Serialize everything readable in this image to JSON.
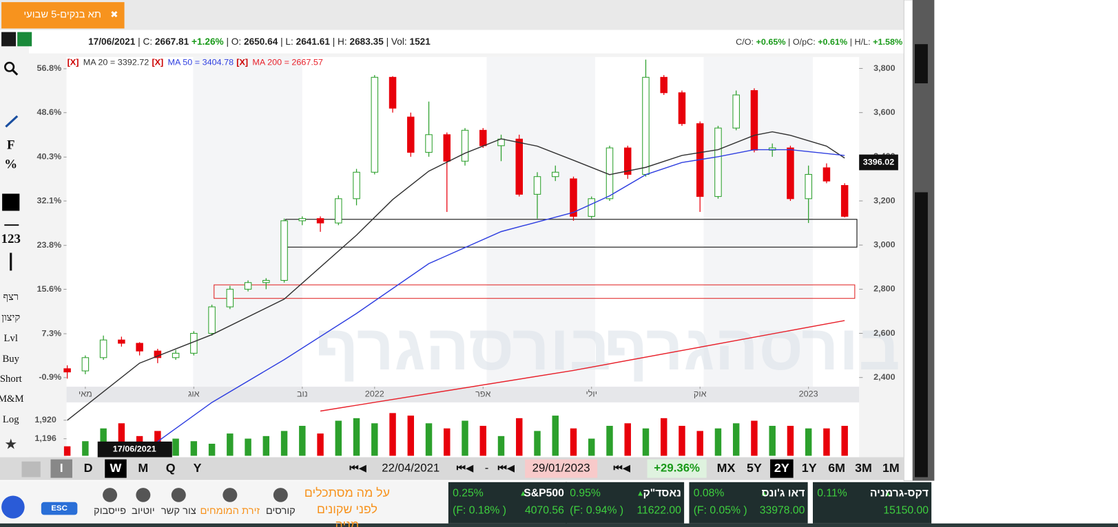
{
  "tab": {
    "title": "תא בנקים-5 שבועי",
    "close": "✖"
  },
  "info": {
    "date": "17/06/2021",
    "c_label": "| C:",
    "c": "2667.81",
    "c_change": "+1.26%",
    "o_label": "| O:",
    "o": "2650.64",
    "l_label": "| L:",
    "l": "2641.61",
    "h_label": "| H:",
    "h": "2683.35",
    "vol_label": "| Vol:",
    "vol": "1521",
    "co_label": "C/O:",
    "co": "+0.65%",
    "opc_label": "| O/pC:",
    "opc": "+0.61%",
    "hl_label": "| H/L:",
    "hl": "+1.58%"
  },
  "toolbar_left": [
    "F",
    "%",
    "123",
    "רצף",
    "קיצון",
    "Lvl",
    "Buy",
    "Short",
    "M&M",
    "Log"
  ],
  "chart_data": {
    "type": "candlestick",
    "watermark": "בורסהגרף",
    "ma_legend": [
      {
        "x": "[X]",
        "text": "MA 20 = 3392.72"
      },
      {
        "x": "[X]",
        "text": "MA 50 = 3404.78"
      },
      {
        "x": "[X]",
        "text": "MA 200 = 2667.57"
      }
    ],
    "price_tag": "3396.02",
    "cursor_date": "17/06/2021",
    "open": [
      2440,
      2430,
      2490,
      2570,
      2555,
      2520,
      2490,
      2510,
      2600,
      2720,
      2800,
      2830,
      2840,
      3110,
      3120,
      3100,
      3210,
      3330,
      3760,
      3580,
      3420,
      3500,
      3380,
      3520,
      3450,
      3480,
      3230,
      3310,
      3300,
      3130,
      3210,
      3440,
      3320,
      3760,
      3690,
      3550,
      3220,
      3530,
      3700,
      3430,
      3440,
      3210,
      3350,
      3270
    ],
    "high": [
      2455,
      2500,
      2590,
      2585,
      2560,
      2530,
      2525,
      2610,
      2730,
      2815,
      2840,
      2850,
      3120,
      3130,
      3130,
      3225,
      3345,
      3770,
      3765,
      3600,
      3650,
      3510,
      3530,
      3530,
      3500,
      3500,
      3330,
      3360,
      3310,
      3220,
      3450,
      3450,
      3840,
      3770,
      3700,
      3560,
      3540,
      3700,
      3710,
      3460,
      3450,
      3360,
      3370,
      3280
    ],
    "low": [
      2395,
      2415,
      2480,
      2540,
      2500,
      2465,
      2480,
      2500,
      2590,
      2710,
      2790,
      2800,
      2830,
      3090,
      3060,
      3090,
      3180,
      3320,
      3600,
      3400,
      3400,
      3150,
      3360,
      3440,
      3380,
      3220,
      3120,
      3290,
      3110,
      3120,
      3200,
      3300,
      3310,
      3680,
      3540,
      3150,
      3210,
      3520,
      3420,
      3400,
      3200,
      3100,
      3280,
      3125
    ],
    "close": [
      2425,
      2490,
      2570,
      2555,
      2520,
      2490,
      2510,
      2600,
      2720,
      2800,
      2830,
      2840,
      3110,
      3120,
      3100,
      3210,
      3330,
      3760,
      3620,
      3420,
      3500,
      3380,
      3520,
      3450,
      3480,
      3230,
      3310,
      3330,
      3130,
      3210,
      3440,
      3320,
      3760,
      3690,
      3550,
      3220,
      3530,
      3680,
      3430,
      3440,
      3210,
      3320,
      3290,
      3130
    ],
    "up_color": "#2ca02c",
    "down_color": "#e8000b",
    "ma": [
      {
        "name": "MA 20",
        "color": "#333333",
        "x": [
          0,
          4,
          8,
          12,
          16,
          18,
          20,
          22,
          24,
          26,
          28,
          30,
          32,
          34,
          36,
          38,
          39,
          40,
          42,
          43
        ],
        "values": [
          2206,
          2465,
          2594,
          2755,
          3045,
          3206,
          3335,
          3416,
          3481,
          3448,
          3384,
          3319,
          3352,
          3406,
          3432,
          3497,
          3513,
          3497,
          3448,
          3394
        ]
      },
      {
        "name": "MA 50",
        "color": "#2f3fe0",
        "x": [
          5,
          8,
          12,
          16,
          20,
          24,
          28,
          30,
          32,
          34,
          36,
          38,
          40,
          43
        ],
        "values": [
          2110,
          2287,
          2481,
          2690,
          2916,
          3061,
          3148,
          3223,
          3319,
          3374,
          3400,
          3432,
          3432,
          3406
        ]
      },
      {
        "name": "MA 200",
        "color": "#e8202a",
        "x": [
          14,
          28,
          43
        ],
        "values": [
          2248,
          2432,
          2658
        ]
      }
    ],
    "ylim": [
      2368,
      3852
    ],
    "yticks": [
      {
        "value": 2400,
        "label": "2,400"
      },
      {
        "value": 2600,
        "label": "2,600"
      },
      {
        "value": 2800,
        "label": "2,800"
      },
      {
        "value": 3000,
        "label": "3,000"
      },
      {
        "value": 3200,
        "label": "3,200"
      },
      {
        "value": 3400,
        "label": "3,400"
      },
      {
        "value": 3600,
        "label": "3,600"
      },
      {
        "value": 3800,
        "label": "3,800"
      }
    ],
    "y2lim": [
      -2.2,
      59.0
    ],
    "y2ticks": [
      {
        "value": -0.9,
        "label": "-0.9%"
      },
      {
        "value": 7.3,
        "label": "7.3%"
      },
      {
        "value": 15.6,
        "label": "15.6%"
      },
      {
        "value": 23.8,
        "label": "23.8%"
      },
      {
        "value": 32.1,
        "label": "32.1%"
      },
      {
        "value": 40.3,
        "label": "40.3%"
      },
      {
        "value": 48.6,
        "label": "48.6%"
      },
      {
        "value": 56.8,
        "label": "56.8%"
      }
    ],
    "xticks": [
      {
        "value": 1,
        "label": "מאי"
      },
      {
        "value": 7,
        "label": "אוג"
      },
      {
        "value": 13,
        "label": "נוב"
      },
      {
        "value": 17,
        "label": "2022"
      },
      {
        "value": 23,
        "label": "אפר"
      },
      {
        "value": 29,
        "label": "יולי"
      },
      {
        "value": 35,
        "label": "אוק"
      },
      {
        "value": 41,
        "label": "2023"
      }
    ],
    "volume": {
      "values": [
        900,
        1100,
        1600,
        1800,
        1300,
        1500,
        1200,
        1100,
        1000,
        1400,
        1200,
        1300,
        1500,
        1700,
        1400,
        1900,
        2000,
        1800,
        2200,
        2100,
        1800,
        1600,
        1900,
        1700,
        1300,
        2000,
        1500,
        2100,
        1600,
        1200,
        1700,
        1800,
        1600,
        2000,
        1700,
        1500,
        1600,
        1800,
        1900,
        1700,
        1700,
        1600,
        1600,
        1700
      ],
      "ylim": [
        529,
        2618
      ],
      "yticks": [
        {
          "value": 1196,
          "label": "1,196"
        },
        {
          "value": 1920,
          "label": "1,920"
        }
      ]
    }
  },
  "bottom_bar": {
    "periods": [
      "I",
      "D",
      "W",
      "M",
      "Q",
      "Y"
    ],
    "from": "22/04/2021",
    "dash": "-",
    "to": "29/01/2023",
    "change": "+29.36%",
    "ranges": [
      "MX",
      "5Y",
      "2Y",
      "1Y",
      "6M",
      "3M",
      "1M"
    ]
  },
  "footer": {
    "esc": "ESC",
    "links": [
      "פייסבוק",
      "יוטיוב",
      "צור קשר",
      "זירת המומחים",
      "קורסים"
    ],
    "promo": [
      "על מה מסתכלים",
      "לפני שקונים",
      "מניה"
    ],
    "tickers": [
      {
        "change": "0.25%",
        "name": "S&P500",
        "futures": "(F: 0.18% )",
        "price": "4070.56"
      },
      {
        "change": "0.95%",
        "name": "נאסד\"ק",
        "futures": "(F: 0.94% )",
        "price": "11622.00"
      },
      {
        "change": "0.08%",
        "name": "דאו ג'ונס",
        "futures": "(F: 0.05% )",
        "price": "33978.00"
      },
      {
        "change": "0.11%",
        "name": "דקס-גרמניה",
        "futures": "",
        "price": "15150.00"
      }
    ]
  }
}
